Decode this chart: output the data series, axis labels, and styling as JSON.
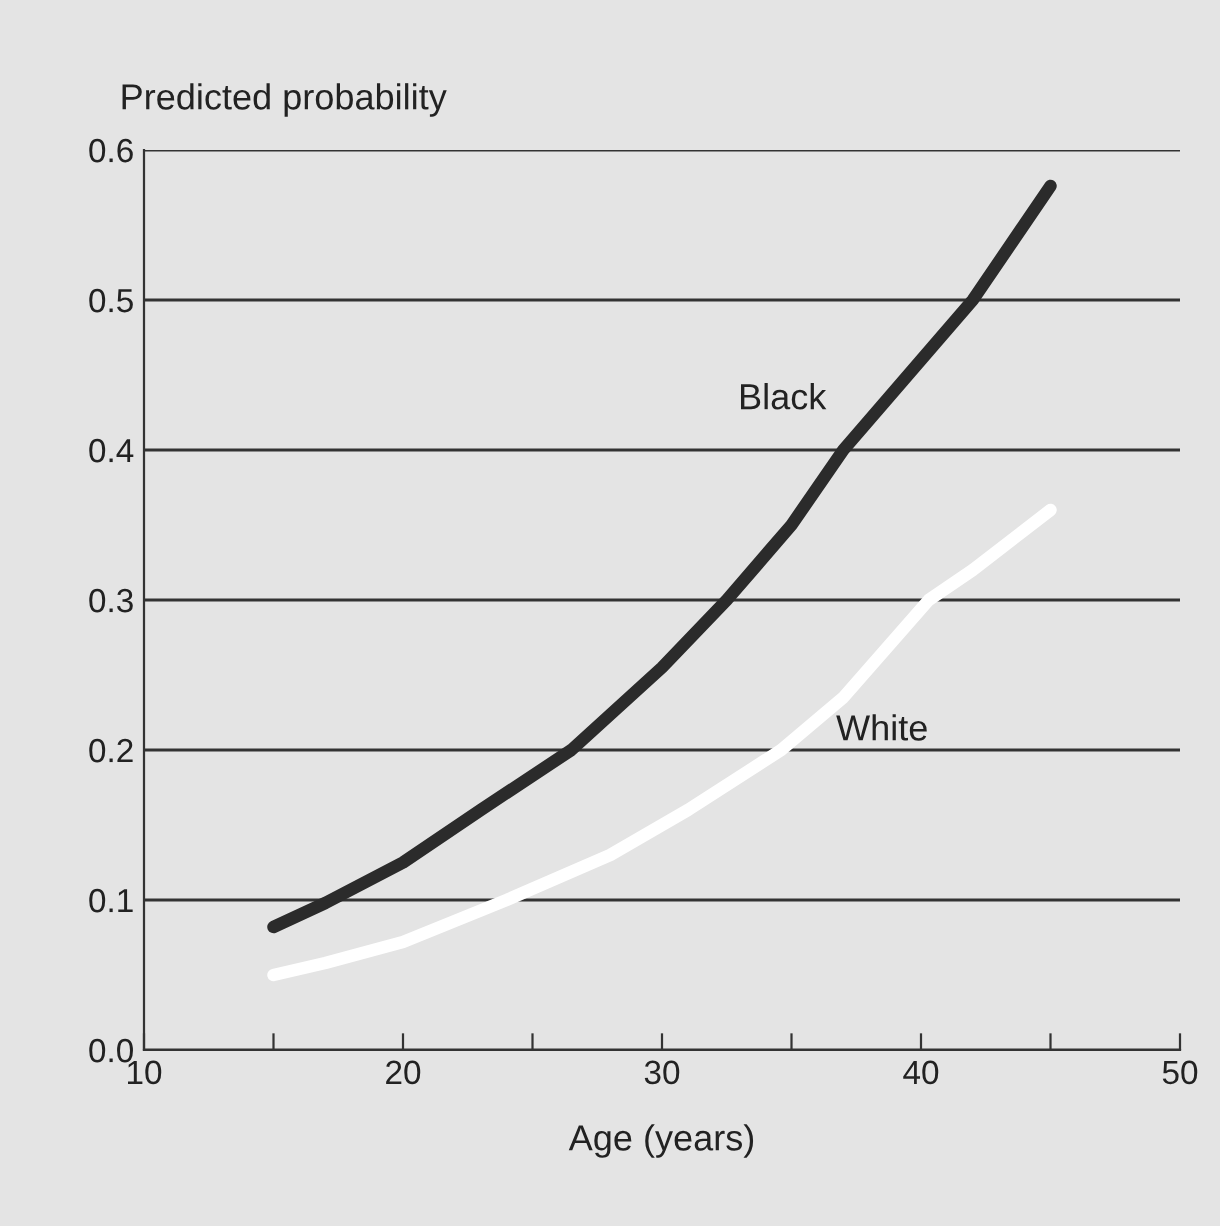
{
  "chart_data": {
    "type": "line",
    "xlabel": "Age (years)",
    "ylabel": "Predicted probability",
    "xlim": [
      10,
      50
    ],
    "ylim": [
      0,
      0.6
    ],
    "xticks": [
      10,
      {
        "value": 15,
        "label": null
      },
      20,
      {
        "value": 25,
        "label": null
      },
      30,
      {
        "value": 35,
        "label": null
      },
      40,
      {
        "value": 45,
        "label": null
      },
      50
    ],
    "yticks": [
      {
        "value": 0,
        "label": "0.0"
      },
      0.1,
      0.2,
      0.3,
      0.4,
      0.5,
      0.6
    ],
    "grid": "y",
    "legend": false,
    "series": [
      {
        "name": "Black",
        "color": "#2b2b2b",
        "x": [
          15,
          17,
          20,
          23,
          26.5,
          30,
          32.5,
          35,
          37,
          40,
          42,
          45
        ],
        "values": [
          0.082,
          0.098,
          0.125,
          0.16,
          0.2,
          0.255,
          0.3,
          0.35,
          0.4,
          0.46,
          0.5,
          0.576
        ]
      },
      {
        "name": "White",
        "color": "#ffffff",
        "x": [
          15,
          17,
          20,
          24,
          28,
          31,
          34.6,
          37,
          40.3,
          42,
          45
        ],
        "values": [
          0.05,
          0.058,
          0.072,
          0.1,
          0.13,
          0.16,
          0.2,
          0.235,
          0.3,
          0.32,
          0.36
        ]
      }
    ]
  }
}
